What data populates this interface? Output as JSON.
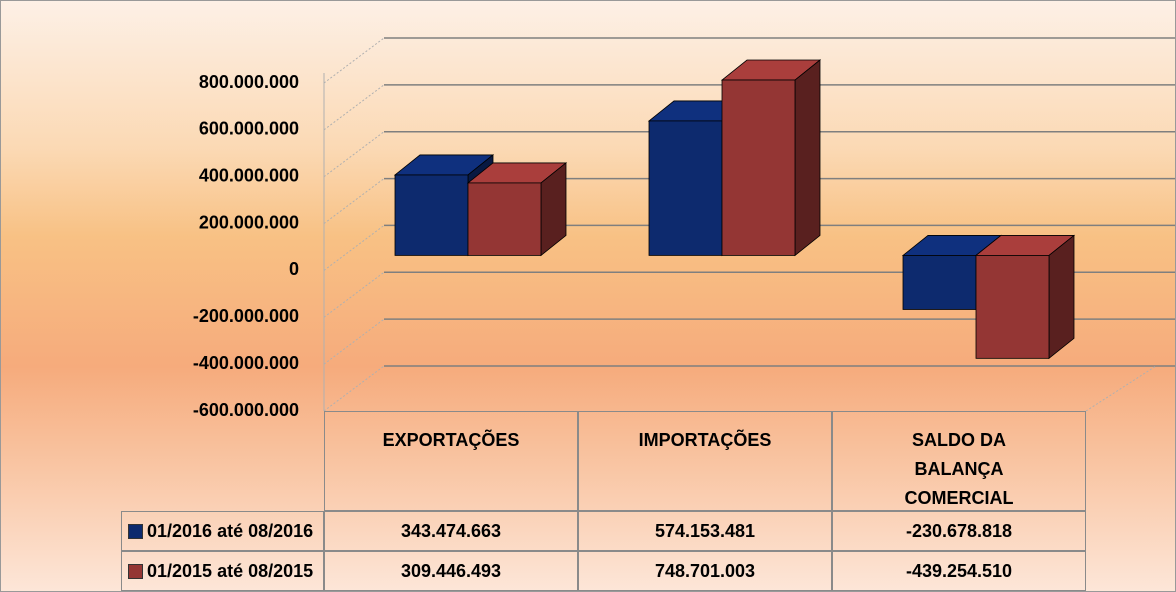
{
  "chart_data": {
    "type": "bar3d",
    "categories": [
      "EXPORTAÇÕES",
      "IMPORTAÇÕES",
      "SALDO DA BALANÇA COMERCIAL"
    ],
    "series": [
      {
        "name": "01/2016 até 08/2016",
        "color": "#0d2a6e",
        "values": [
          343474663,
          574153481,
          -230678818
        ],
        "value_labels": [
          "343.474.663",
          "574.153.481",
          "-230.678.818"
        ]
      },
      {
        "name": "01/2015 até 08/2015",
        "color": "#943634",
        "values": [
          309446493,
          748701003,
          -439254510
        ],
        "value_labels": [
          "309.446.493",
          "748.701.003",
          "-439.254.510"
        ]
      }
    ],
    "ylim": [
      -600000000,
      800000000
    ],
    "yticks": [
      {
        "value": -600000000,
        "label": "-600.000.000"
      },
      {
        "value": -400000000,
        "label": "-400.000.000"
      },
      {
        "value": -200000000,
        "label": "-200.000.000"
      },
      0,
      {
        "value": 200000000,
        "label": "200.000.000"
      },
      {
        "value": 400000000,
        "label": "400.000.000"
      },
      {
        "value": 600000000,
        "label": "600.000.000"
      },
      {
        "value": 800000000,
        "label": "800.000.000"
      }
    ],
    "grid": true
  }
}
